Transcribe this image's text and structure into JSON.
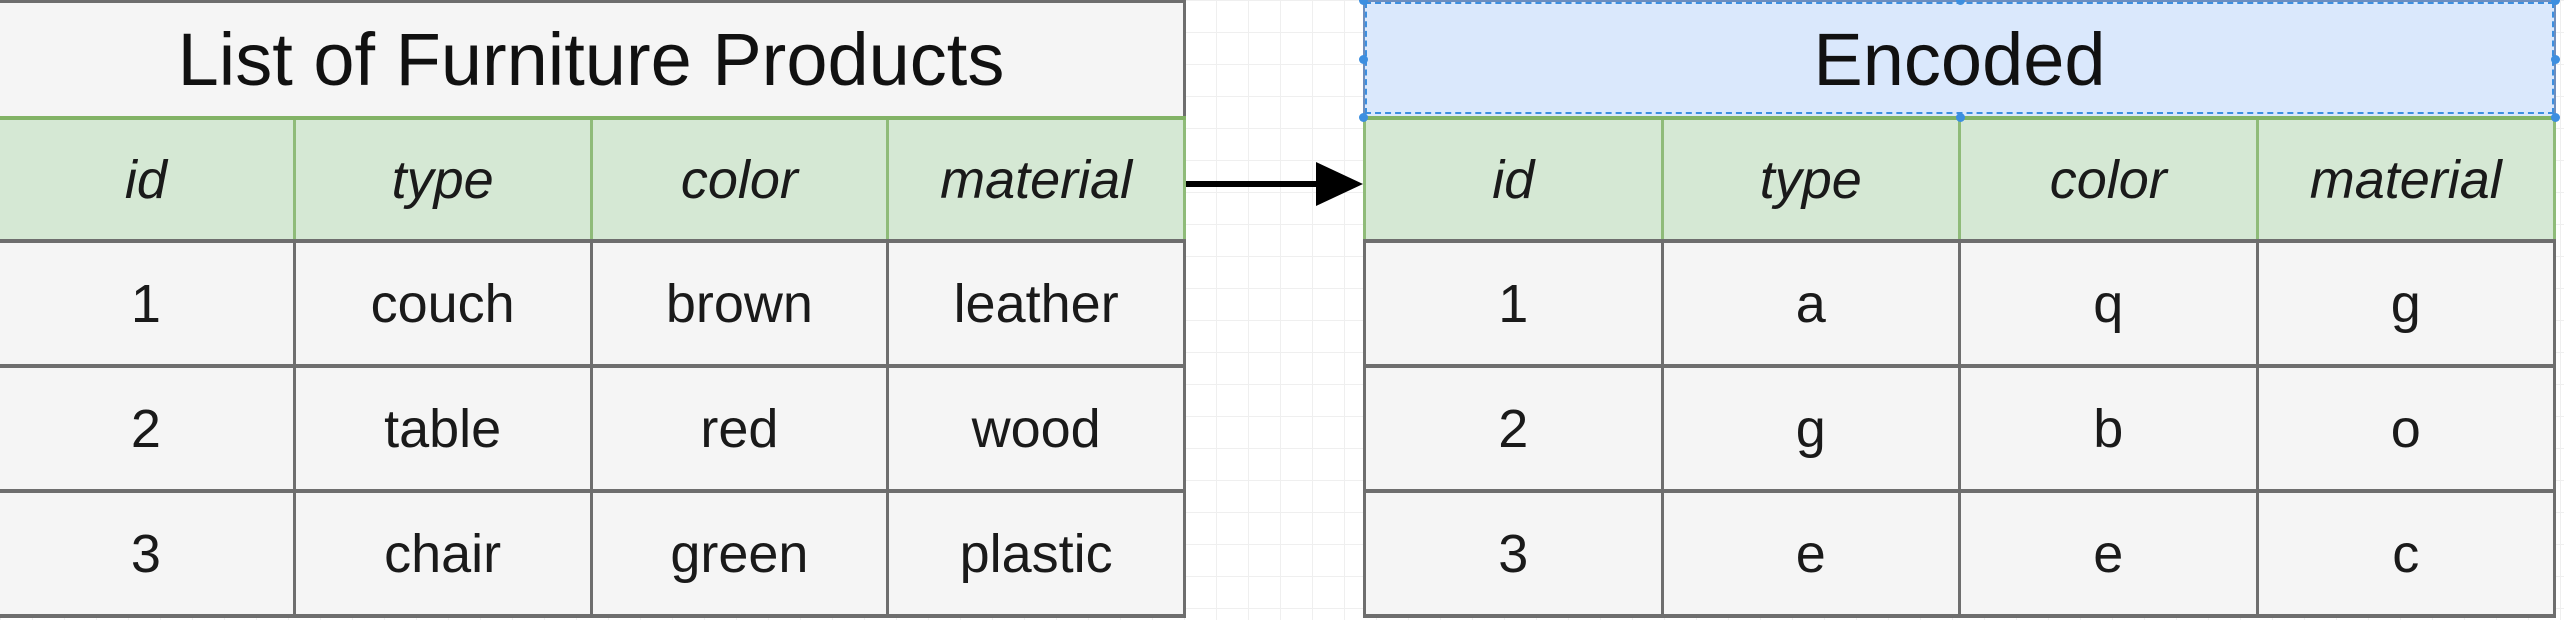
{
  "left_table": {
    "title": "List of Furniture Products",
    "headers": [
      "id",
      "type",
      "color",
      "material"
    ],
    "rows": [
      [
        "1",
        "couch",
        "brown",
        "leather"
      ],
      [
        "2",
        "table",
        "red",
        "wood"
      ],
      [
        "3",
        "chair",
        "green",
        "plastic"
      ]
    ]
  },
  "right_table": {
    "title": "Encoded",
    "headers": [
      "id",
      "type",
      "color",
      "material"
    ],
    "rows": [
      [
        "1",
        "a",
        "q",
        "g"
      ],
      [
        "2",
        "g",
        "b",
        "o"
      ],
      [
        "3",
        "e",
        "e",
        "c"
      ]
    ]
  },
  "colors": {
    "header_fill": "#d5e8d4",
    "header_border": "#82b366",
    "title_fill_selected": "#dae8fc",
    "selection_outline": "#3d8fe0",
    "cell_fill": "#f5f5f5",
    "cell_border": "#6e6e6e",
    "arrow": "#000000"
  }
}
